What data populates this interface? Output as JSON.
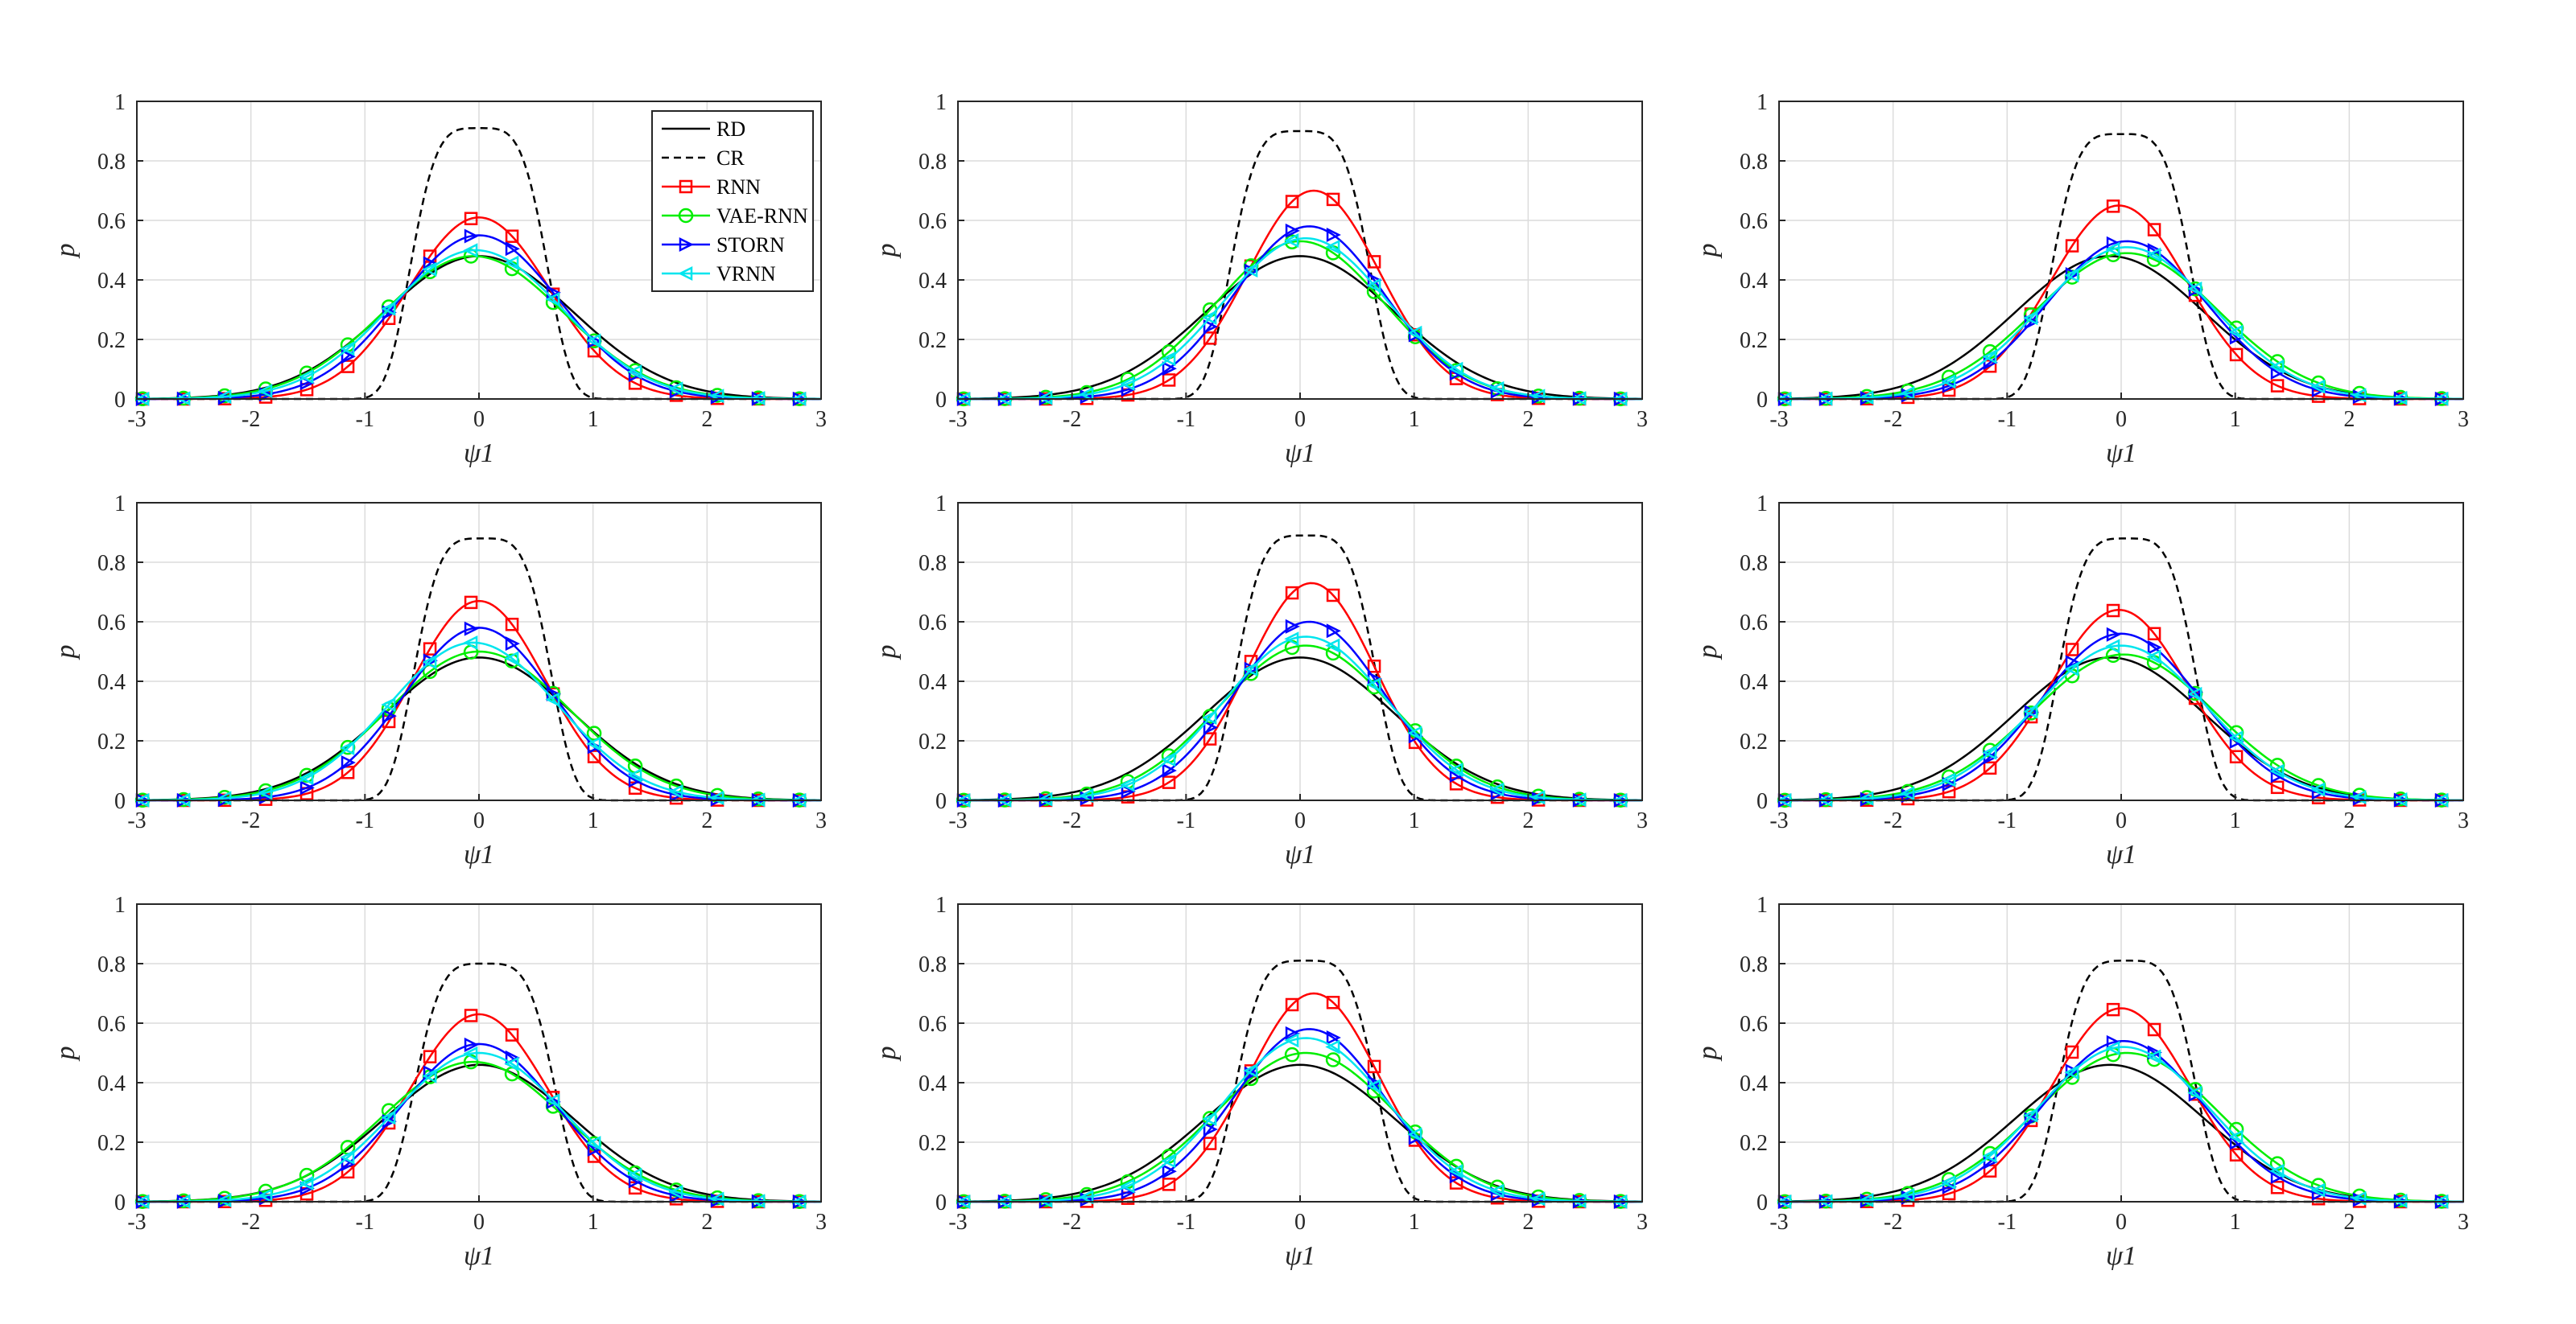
{
  "figure": {
    "layout": "3x3 grid of line charts",
    "colors": {
      "RD": "#000000",
      "CR": "#000000",
      "RNN": "#ff0000",
      "VAE-RNN": "#00ee00",
      "STORN": "#0000ff",
      "VRNN": "#00e5ee",
      "grid": "#dcdcdc",
      "axis": "#262626"
    },
    "markers": {
      "RNN": "square",
      "VAE-RNN": "circle",
      "STORN": "triangle-right",
      "VRNN": "triangle-left"
    },
    "line_styles": {
      "RD": "solid",
      "CR": "dashed",
      "RNN": "solid",
      "VAE-RNN": "solid",
      "STORN": "solid",
      "VRNN": "solid"
    }
  },
  "legend": {
    "entries": [
      "RD",
      "CR",
      "RNN",
      "VAE-RNN",
      "STORN",
      "VRNN"
    ],
    "placement": "top-right of first subplot"
  },
  "chart_data": [
    {
      "type": "line",
      "xlabel": "ψ1",
      "ylabel": "p",
      "xlim": [
        -3,
        3
      ],
      "ylim": [
        0,
        1
      ],
      "xticks": [
        "-3",
        "-2",
        "-1",
        "0",
        "1",
        "2",
        "3"
      ],
      "yticks": [
        "0",
        "0.2",
        "0.4",
        "0.6",
        "0.8",
        "1"
      ],
      "series": [
        {
          "name": "RD",
          "mu": 0.0,
          "sigma": 0.83,
          "peak": 0.48
        },
        {
          "name": "CR",
          "mu": 0.0,
          "sigma": 0.55,
          "peak": 0.91,
          "flatness": 4
        },
        {
          "name": "RNN",
          "mu": 0.0,
          "sigma": 0.62,
          "peak": 0.61
        },
        {
          "name": "VAE-RNN",
          "mu": -0.05,
          "sigma": 0.79,
          "peak": 0.48
        },
        {
          "name": "STORN",
          "mu": 0.0,
          "sigma": 0.7,
          "peak": 0.55
        },
        {
          "name": "VRNN",
          "mu": -0.03,
          "sigma": 0.76,
          "peak": 0.5
        }
      ]
    },
    {
      "type": "line",
      "xlabel": "ψ1",
      "ylabel": "p",
      "xlim": [
        -3,
        3
      ],
      "ylim": [
        0,
        1
      ],
      "xticks": [
        "-3",
        "-2",
        "-1",
        "0",
        "1",
        "2",
        "3"
      ],
      "yticks": [
        "0",
        "0.2",
        "0.4",
        "0.6",
        "0.8",
        "1"
      ],
      "series": [
        {
          "name": "RD",
          "mu": 0.0,
          "sigma": 0.83,
          "peak": 0.48
        },
        {
          "name": "CR",
          "mu": 0.0,
          "sigma": 0.56,
          "peak": 0.9,
          "flatness": 4
        },
        {
          "name": "RNN",
          "mu": 0.12,
          "sigma": 0.58,
          "peak": 0.7
        },
        {
          "name": "VAE-RNN",
          "mu": 0.0,
          "sigma": 0.74,
          "peak": 0.53
        },
        {
          "name": "STORN",
          "mu": 0.08,
          "sigma": 0.66,
          "peak": 0.58
        },
        {
          "name": "VRNN",
          "mu": 0.05,
          "sigma": 0.72,
          "peak": 0.54
        }
      ]
    },
    {
      "type": "line",
      "xlabel": "ψ1",
      "ylabel": "p",
      "xlim": [
        -3,
        3
      ],
      "ylim": [
        0,
        1
      ],
      "xticks": [
        "-3",
        "-2",
        "-1",
        "0",
        "1",
        "2",
        "3"
      ],
      "yticks": [
        "0",
        "0.2",
        "0.4",
        "0.6",
        "0.8",
        "1"
      ],
      "series": [
        {
          "name": "RD",
          "mu": -0.1,
          "sigma": 0.83,
          "peak": 0.48
        },
        {
          "name": "CR",
          "mu": 0.0,
          "sigma": 0.56,
          "peak": 0.89,
          "flatness": 4
        },
        {
          "name": "RNN",
          "mu": -0.02,
          "sigma": 0.6,
          "peak": 0.65
        },
        {
          "name": "VAE-RNN",
          "mu": 0.05,
          "sigma": 0.8,
          "peak": 0.49
        },
        {
          "name": "STORN",
          "mu": 0.05,
          "sigma": 0.7,
          "peak": 0.53
        },
        {
          "name": "VRNN",
          "mu": 0.05,
          "sigma": 0.75,
          "peak": 0.51
        }
      ]
    },
    {
      "type": "line",
      "xlabel": "ψ1",
      "ylabel": "p",
      "xlim": [
        -3,
        3
      ],
      "ylim": [
        0,
        1
      ],
      "xticks": [
        "-3",
        "-2",
        "-1",
        "0",
        "1",
        "2",
        "3"
      ],
      "yticks": [
        "0",
        "0.2",
        "0.4",
        "0.6",
        "0.8",
        "1"
      ],
      "series": [
        {
          "name": "RD",
          "mu": 0.0,
          "sigma": 0.83,
          "peak": 0.48
        },
        {
          "name": "CR",
          "mu": 0.03,
          "sigma": 0.55,
          "peak": 0.88,
          "flatness": 4
        },
        {
          "name": "RNN",
          "mu": 0.0,
          "sigma": 0.58,
          "peak": 0.67
        },
        {
          "name": "VAE-RNN",
          "mu": 0.0,
          "sigma": 0.8,
          "peak": 0.5
        },
        {
          "name": "STORN",
          "mu": 0.0,
          "sigma": 0.66,
          "peak": 0.58
        },
        {
          "name": "VRNN",
          "mu": -0.05,
          "sigma": 0.74,
          "peak": 0.53
        }
      ]
    },
    {
      "type": "line",
      "xlabel": "ψ1",
      "ylabel": "p",
      "xlim": [
        -3,
        3
      ],
      "ylim": [
        0,
        1
      ],
      "xticks": [
        "-3",
        "-2",
        "-1",
        "0",
        "1",
        "2",
        "3"
      ],
      "yticks": [
        "0",
        "0.2",
        "0.4",
        "0.6",
        "0.8",
        "1"
      ],
      "series": [
        {
          "name": "RD",
          "mu": 0.0,
          "sigma": 0.83,
          "peak": 0.48
        },
        {
          "name": "CR",
          "mu": 0.05,
          "sigma": 0.56,
          "peak": 0.89,
          "flatness": 4
        },
        {
          "name": "RNN",
          "mu": 0.1,
          "sigma": 0.56,
          "peak": 0.73
        },
        {
          "name": "VAE-RNN",
          "mu": 0.05,
          "sigma": 0.76,
          "peak": 0.52
        },
        {
          "name": "STORN",
          "mu": 0.08,
          "sigma": 0.65,
          "peak": 0.6
        },
        {
          "name": "VRNN",
          "mu": 0.05,
          "sigma": 0.72,
          "peak": 0.55
        }
      ]
    },
    {
      "type": "line",
      "xlabel": "ψ1",
      "ylabel": "p",
      "xlim": [
        -3,
        3
      ],
      "ylim": [
        0,
        1
      ],
      "xticks": [
        "-3",
        "-2",
        "-1",
        "0",
        "1",
        "2",
        "3"
      ],
      "yticks": [
        "0",
        "0.2",
        "0.4",
        "0.6",
        "0.8",
        "1"
      ],
      "series": [
        {
          "name": "RD",
          "mu": -0.1,
          "sigma": 0.83,
          "peak": 0.48
        },
        {
          "name": "CR",
          "mu": 0.05,
          "sigma": 0.55,
          "peak": 0.88,
          "flatness": 4
        },
        {
          "name": "RNN",
          "mu": -0.02,
          "sigma": 0.6,
          "peak": 0.64
        },
        {
          "name": "VAE-RNN",
          "mu": 0.02,
          "sigma": 0.8,
          "peak": 0.49
        },
        {
          "name": "STORN",
          "mu": 0.0,
          "sigma": 0.7,
          "peak": 0.56
        },
        {
          "name": "VRNN",
          "mu": 0.0,
          "sigma": 0.75,
          "peak": 0.52
        }
      ]
    },
    {
      "type": "line",
      "xlabel": "ψ1",
      "ylabel": "p",
      "xlim": [
        -3,
        3
      ],
      "ylim": [
        0,
        1
      ],
      "xticks": [
        "-3",
        "-2",
        "-1",
        "0",
        "1",
        "2",
        "3"
      ],
      "yticks": [
        "0",
        "0.2",
        "0.4",
        "0.6",
        "0.8",
        "1"
      ],
      "series": [
        {
          "name": "RD",
          "mu": 0.0,
          "sigma": 0.83,
          "peak": 0.46
        },
        {
          "name": "CR",
          "mu": 0.05,
          "sigma": 0.56,
          "peak": 0.8,
          "flatness": 4
        },
        {
          "name": "RNN",
          "mu": 0.0,
          "sigma": 0.6,
          "peak": 0.63
        },
        {
          "name": "VAE-RNN",
          "mu": -0.05,
          "sigma": 0.8,
          "peak": 0.47
        },
        {
          "name": "STORN",
          "mu": 0.0,
          "sigma": 0.68,
          "peak": 0.53
        },
        {
          "name": "VRNN",
          "mu": 0.0,
          "sigma": 0.74,
          "peak": 0.5
        }
      ]
    },
    {
      "type": "line",
      "xlabel": "ψ1",
      "ylabel": "p",
      "xlim": [
        -3,
        3
      ],
      "ylim": [
        0,
        1
      ],
      "xticks": [
        "-3",
        "-2",
        "-1",
        "0",
        "1",
        "2",
        "3"
      ],
      "yticks": [
        "0",
        "0.2",
        "0.4",
        "0.6",
        "0.8",
        "1"
      ],
      "series": [
        {
          "name": "RD",
          "mu": 0.0,
          "sigma": 0.83,
          "peak": 0.46
        },
        {
          "name": "CR",
          "mu": 0.05,
          "sigma": 0.56,
          "peak": 0.81,
          "flatness": 4
        },
        {
          "name": "RNN",
          "mu": 0.12,
          "sigma": 0.57,
          "peak": 0.7
        },
        {
          "name": "VAE-RNN",
          "mu": 0.05,
          "sigma": 0.78,
          "peak": 0.5
        },
        {
          "name": "STORN",
          "mu": 0.08,
          "sigma": 0.66,
          "peak": 0.58
        },
        {
          "name": "VRNN",
          "mu": 0.05,
          "sigma": 0.72,
          "peak": 0.55
        }
      ]
    },
    {
      "type": "line",
      "xlabel": "ψ1",
      "ylabel": "p",
      "xlim": [
        -3,
        3
      ],
      "ylim": [
        0,
        1
      ],
      "xticks": [
        "-3",
        "-2",
        "-1",
        "0",
        "1",
        "2",
        "3"
      ],
      "yticks": [
        "0",
        "0.2",
        "0.4",
        "0.6",
        "0.8",
        "1"
      ],
      "series": [
        {
          "name": "RD",
          "mu": -0.1,
          "sigma": 0.83,
          "peak": 0.46
        },
        {
          "name": "CR",
          "mu": 0.05,
          "sigma": 0.55,
          "peak": 0.81,
          "flatness": 4
        },
        {
          "name": "RNN",
          "mu": 0.0,
          "sigma": 0.6,
          "peak": 0.65
        },
        {
          "name": "VAE-RNN",
          "mu": 0.05,
          "sigma": 0.8,
          "peak": 0.5
        },
        {
          "name": "STORN",
          "mu": 0.02,
          "sigma": 0.7,
          "peak": 0.54
        },
        {
          "name": "VRNN",
          "mu": 0.02,
          "sigma": 0.75,
          "peak": 0.52
        }
      ]
    }
  ]
}
